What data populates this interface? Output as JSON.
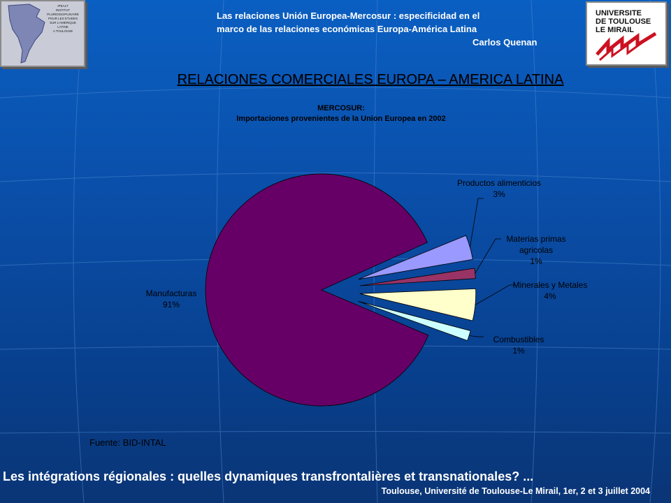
{
  "header": {
    "line1": "Las relaciones Unión Europea-Mercosur : especificidad en el",
    "line2": "marco de las relaciones económicas Europa-América Latina",
    "author": "Carlos Quenan"
  },
  "logo_left": {
    "lines": [
      "IPEALT",
      "INSTITUT",
      "PLURIDISCIPLINAIRE",
      "POUR LES ETUDES",
      "SUR L'AMERIQUE",
      "LATINE",
      "A TOULOUSE"
    ]
  },
  "logo_right": {
    "lines": [
      "UNIVERSITE",
      "DE TOULOUSE",
      "LE MIRAIL"
    ]
  },
  "main_title": "RELACIONES COMERCIALES EUROPA – AMERICA LATINA",
  "chart_data": {
    "type": "pie",
    "title": "MERCOSUR:",
    "subtitle": "Importaciones provenientes de la Union Europea en 2002",
    "slices": [
      {
        "label": "Manufacturas",
        "value": 91,
        "value_label": "91%",
        "color": "#660066",
        "exploded": false
      },
      {
        "label": "Productos alimenticios",
        "value": 3,
        "value_label": "3%",
        "color": "#9999ff",
        "exploded": true
      },
      {
        "label": "Materias primas agricolas",
        "value": 1,
        "value_label": "1%",
        "color": "#993366",
        "exploded": true
      },
      {
        "label": "Minerales y Metales",
        "value": 4,
        "value_label": "4%",
        "color": "#ffffcc",
        "exploded": true
      },
      {
        "label": "Combustibles",
        "value": 1,
        "value_label": "1%",
        "color": "#ccffff",
        "exploded": true
      }
    ]
  },
  "source": "Fuente: BID-INTAL",
  "footer": {
    "line1": "Les intégrations régionales : quelles dynamiques transfrontalières et transnationales? ...",
    "line2": "Toulouse, Université de Toulouse-Le Mirail, 1er, 2 et 3 juillet 2004"
  },
  "colors": {
    "background": "#0a4ea8",
    "header_text": "#ffffff",
    "title_text": "#000000"
  }
}
